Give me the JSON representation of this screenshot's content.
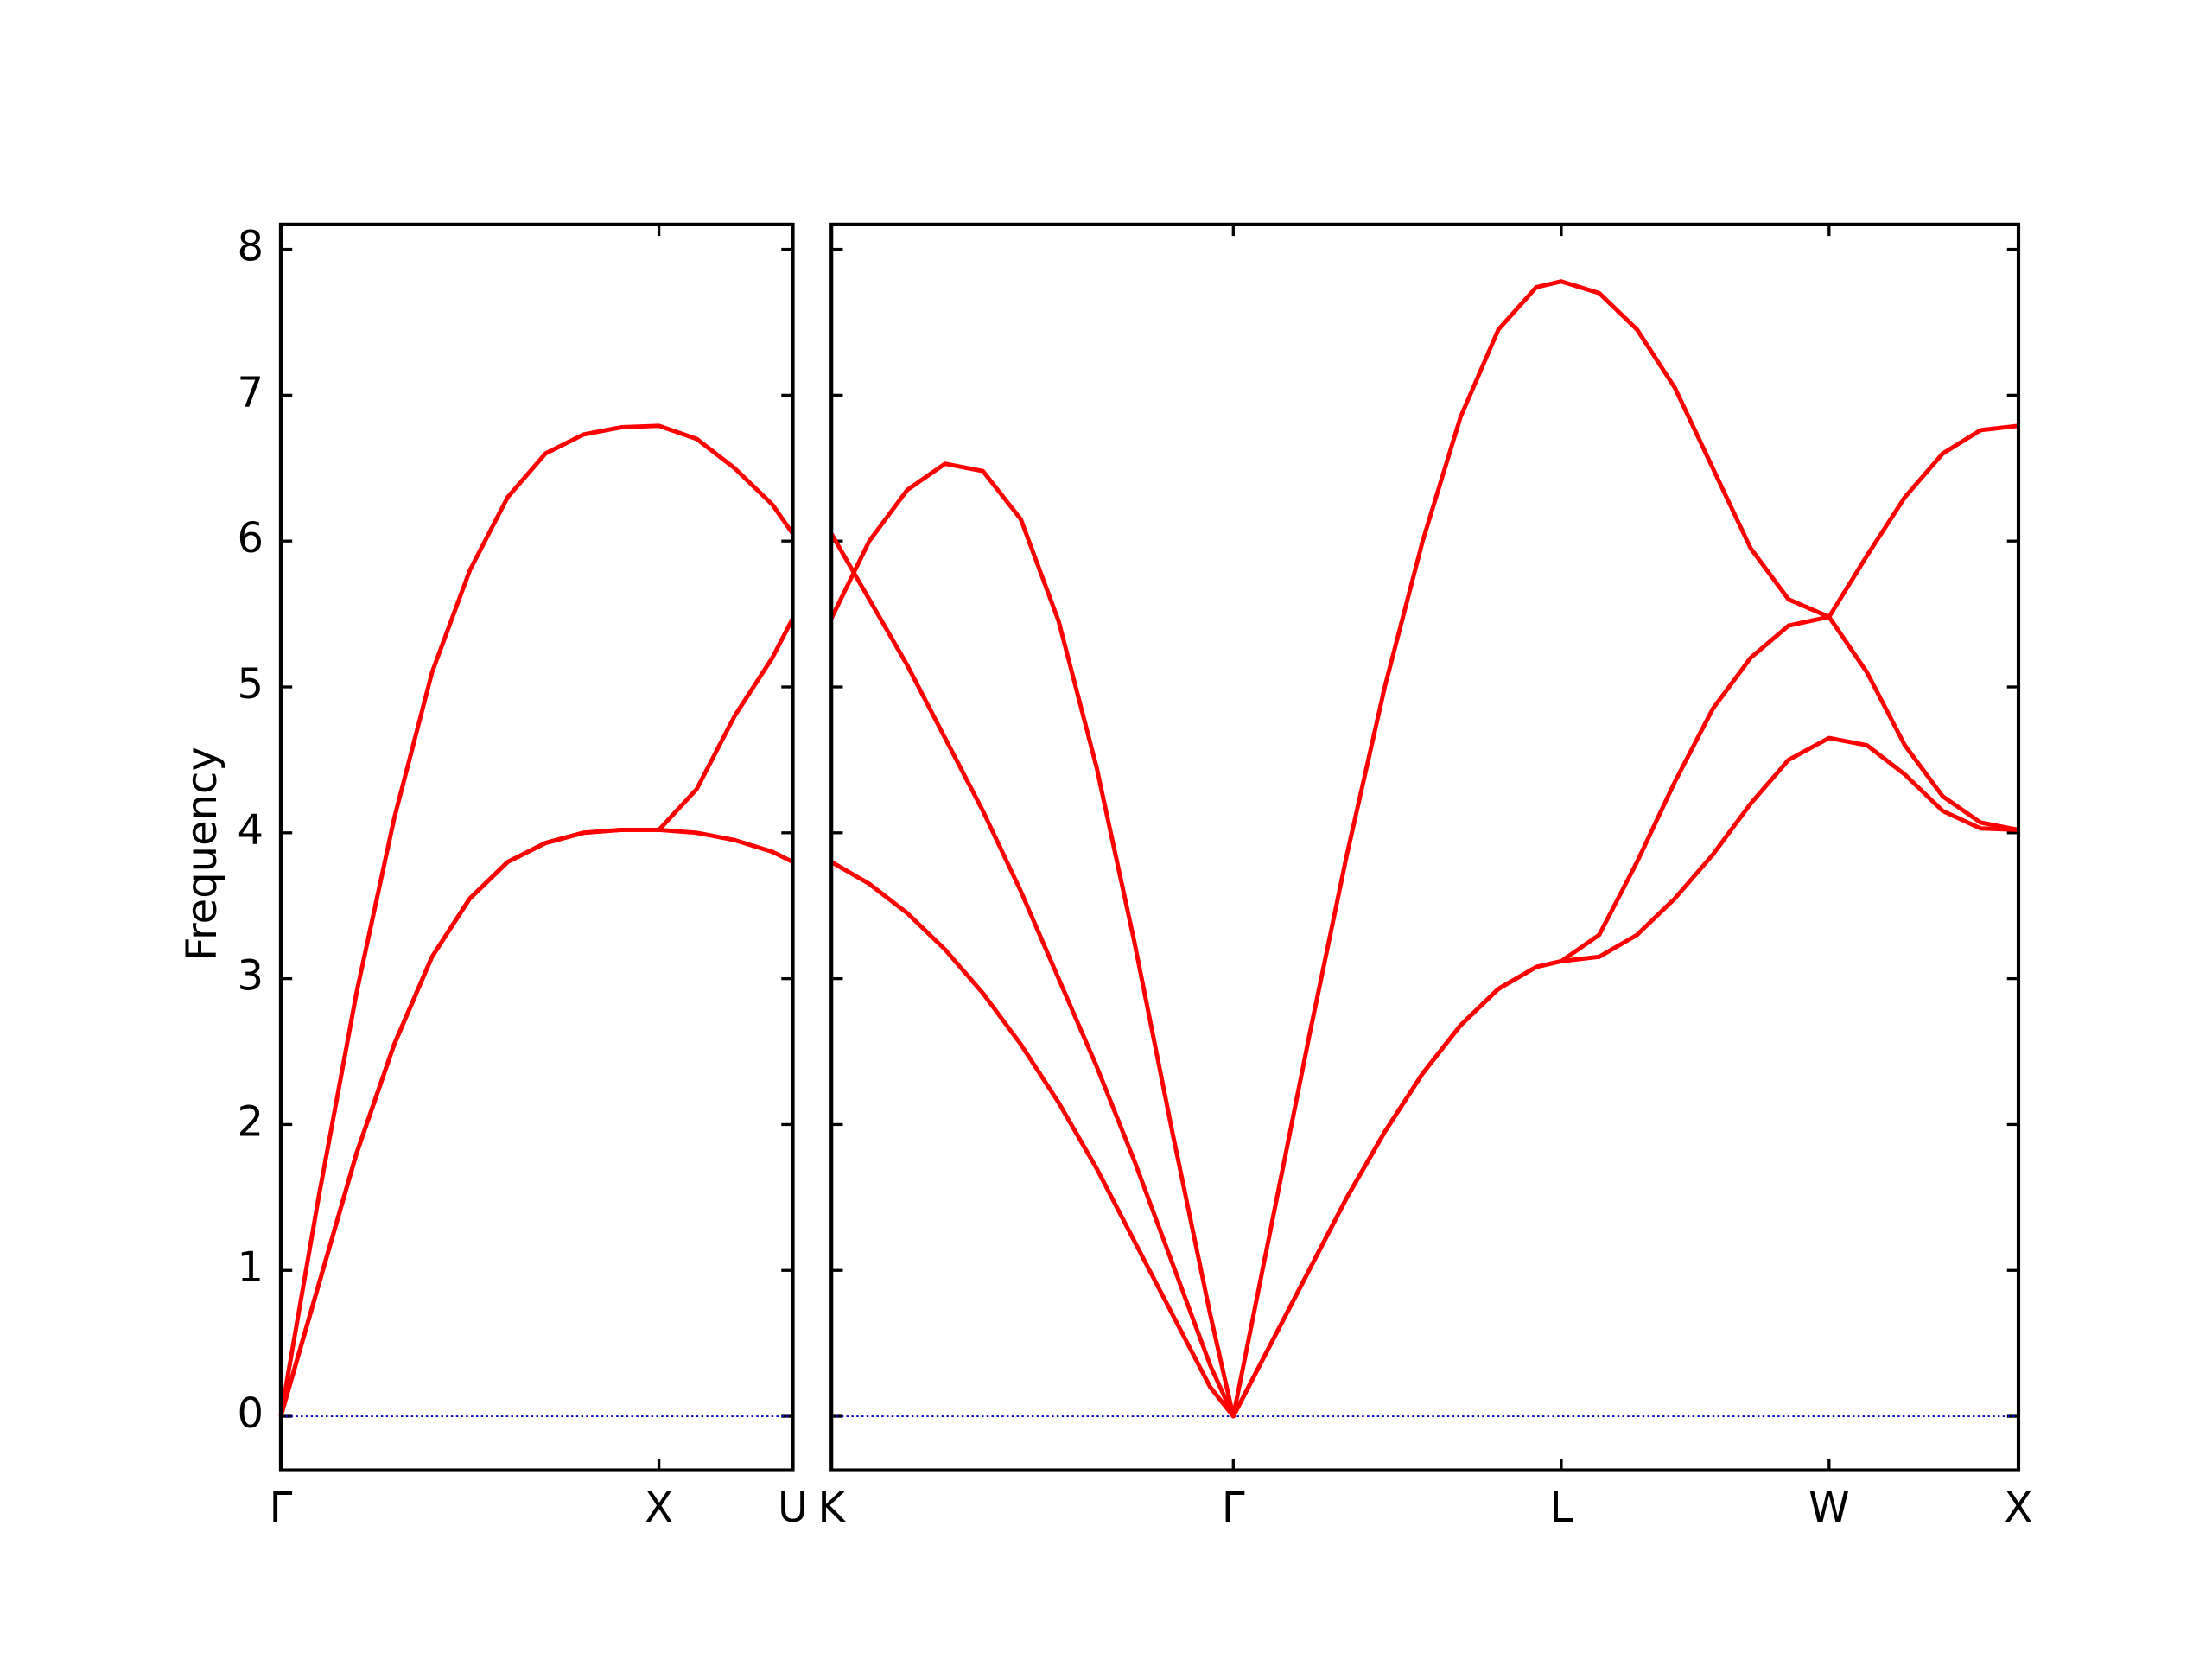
{
  "chart_data": [
    {
      "type": "line",
      "ylabel": "Frequency",
      "x": [
        0,
        0.1,
        0.2,
        0.3,
        0.4,
        0.5,
        0.6,
        0.7,
        0.8,
        0.9,
        1.0,
        1.1,
        1.2,
        1.3,
        1.354
      ],
      "series": [
        {
          "color": "#ff0000",
          "values": [
            0,
            0.9,
            1.8,
            2.55,
            3.15,
            3.55,
            3.8,
            3.93,
            4.0,
            4.02,
            4.02,
            4.0,
            3.95,
            3.87,
            3.8
          ]
        },
        {
          "color": "#ff0000",
          "values": [
            0,
            0.9,
            1.8,
            2.55,
            3.15,
            3.55,
            3.8,
            3.93,
            4.0,
            4.02,
            4.02,
            4.3,
            4.8,
            5.2,
            5.47
          ]
        },
        {
          "color": "#ff0000",
          "values": [
            0,
            1.5,
            2.9,
            4.1,
            5.1,
            5.8,
            6.3,
            6.6,
            6.73,
            6.78,
            6.79,
            6.7,
            6.5,
            6.25,
            6.05
          ]
        }
      ],
      "xlim": [
        0,
        1.354
      ],
      "xticks": [
        {
          "value": 0,
          "label": "Γ"
        },
        {
          "value": 1.0,
          "label": "X"
        },
        {
          "value": 1.354,
          "label": "U"
        }
      ],
      "ylim": [
        -0.37,
        8.17
      ],
      "yticks": [
        0,
        1,
        2,
        3,
        4,
        5,
        6,
        7,
        8
      ],
      "hline": {
        "value": 0,
        "color": "#0000cc"
      }
    },
    {
      "type": "line",
      "x": [
        0,
        0.1,
        0.2,
        0.3,
        0.4,
        0.5,
        0.6,
        0.7,
        0.8,
        0.9,
        1.0,
        1.061,
        1.161,
        1.261,
        1.361,
        1.461,
        1.561,
        1.661,
        1.761,
        1.861,
        1.927,
        2.027,
        2.127,
        2.227,
        2.327,
        2.427,
        2.527,
        2.634,
        2.734,
        2.834,
        2.934,
        3.034,
        3.134
      ],
      "series": [
        {
          "color": "#ff0000",
          "values": [
            3.8,
            3.65,
            3.45,
            3.2,
            2.9,
            2.55,
            2.15,
            1.7,
            1.2,
            0.7,
            0.2,
            0,
            0.5,
            1.0,
            1.5,
            1.95,
            2.35,
            2.68,
            2.93,
            3.08,
            3.12,
            3.15,
            3.3,
            3.55,
            3.85,
            4.2,
            4.5,
            4.65,
            4.6,
            4.4,
            4.15,
            4.03,
            4.02
          ]
        },
        {
          "color": "#ff0000",
          "values": [
            6.05,
            5.6,
            5.15,
            4.65,
            4.15,
            3.6,
            3.0,
            2.4,
            1.75,
            1.05,
            0.35,
            0,
            0.5,
            1.0,
            1.5,
            1.95,
            2.35,
            2.68,
            2.93,
            3.08,
            3.12,
            3.3,
            3.8,
            4.35,
            4.85,
            5.2,
            5.42,
            5.48,
            5.1,
            4.6,
            4.25,
            4.07,
            4.02
          ]
        },
        {
          "color": "#ff0000",
          "values": [
            5.47,
            6.0,
            6.35,
            6.53,
            6.48,
            6.15,
            5.45,
            4.45,
            3.25,
            1.95,
            0.7,
            0,
            1.3,
            2.6,
            3.85,
            5.0,
            6.0,
            6.85,
            7.45,
            7.74,
            7.78,
            7.7,
            7.45,
            7.05,
            6.5,
            5.95,
            5.6,
            5.48,
            5.9,
            6.3,
            6.6,
            6.76,
            6.79
          ]
        }
      ],
      "xlim": [
        0,
        3.134
      ],
      "xticks": [
        {
          "value": 0,
          "label": "K"
        },
        {
          "value": 1.061,
          "label": "Γ"
        },
        {
          "value": 1.927,
          "label": "L"
        },
        {
          "value": 2.634,
          "label": "W"
        },
        {
          "value": 3.134,
          "label": "X"
        }
      ],
      "ylim": [
        -0.37,
        8.17
      ],
      "hline": {
        "value": 0,
        "color": "#0000cc"
      }
    }
  ]
}
